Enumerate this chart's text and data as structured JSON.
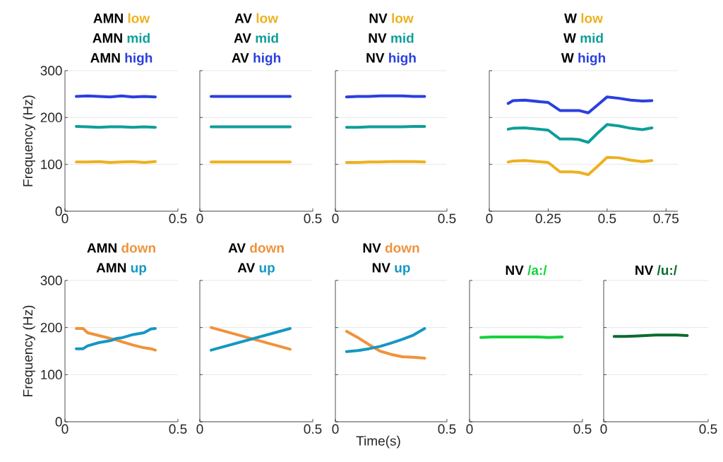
{
  "chart_data": [
    {
      "type": "line",
      "title": "AMN",
      "ylabel": "Frequency (Hz)",
      "xlim": [
        0,
        0.5
      ],
      "xticks": [
        0,
        0.5
      ],
      "ylim": [
        0,
        300
      ],
      "yticks": [
        0,
        100,
        200,
        300
      ],
      "grid": "y",
      "x": [
        0.05,
        0.1,
        0.15,
        0.2,
        0.25,
        0.3,
        0.35,
        0.4
      ],
      "series": [
        {
          "name": "low",
          "color": "#edb120",
          "values": [
            105,
            105,
            106,
            104,
            105,
            106,
            104,
            106
          ]
        },
        {
          "name": "mid",
          "color": "#0e9e9a",
          "values": [
            181,
            180,
            179,
            180,
            180,
            179,
            180,
            179
          ]
        },
        {
          "name": "high",
          "color": "#2a3fe0",
          "values": [
            245,
            246,
            245,
            244,
            246,
            244,
            245,
            244
          ]
        }
      ]
    },
    {
      "type": "line",
      "title": "AV",
      "xlim": [
        0,
        0.5
      ],
      "xticks": [
        0,
        0.5
      ],
      "ylim": [
        0,
        300
      ],
      "yticks": [
        0,
        100,
        200,
        300
      ],
      "grid": "y",
      "tick_labels": "x",
      "x": [
        0.05,
        0.4
      ],
      "series": [
        {
          "name": "low",
          "color": "#edb120",
          "values": [
            105,
            105
          ]
        },
        {
          "name": "mid",
          "color": "#0e9e9a",
          "values": [
            180,
            180
          ]
        },
        {
          "name": "high",
          "color": "#2a3fe0",
          "values": [
            245,
            245
          ]
        }
      ]
    },
    {
      "type": "line",
      "title": "NV",
      "xlim": [
        0,
        0.5
      ],
      "xticks": [
        0,
        0.5
      ],
      "ylim": [
        0,
        300
      ],
      "yticks": [
        0,
        100,
        200,
        300
      ],
      "grid": "y",
      "tick_labels": "x",
      "x": [
        0.05,
        0.1,
        0.15,
        0.2,
        0.25,
        0.3,
        0.35,
        0.4
      ],
      "series": [
        {
          "name": "low",
          "color": "#edb120",
          "values": [
            104,
            104,
            105,
            105,
            106,
            106,
            106,
            105
          ]
        },
        {
          "name": "mid",
          "color": "#0e9e9a",
          "values": [
            179,
            179,
            180,
            180,
            180,
            180,
            181,
            181
          ]
        },
        {
          "name": "high",
          "color": "#2a3fe0",
          "values": [
            244,
            245,
            245,
            246,
            246,
            246,
            245,
            245
          ]
        }
      ]
    },
    {
      "type": "line",
      "title": "W",
      "xlim": [
        0,
        0.8
      ],
      "xticks": [
        0,
        0.25,
        0.5,
        0.75
      ],
      "ylim": [
        0,
        300
      ],
      "yticks": [
        0,
        100,
        200,
        300
      ],
      "grid": "y",
      "tick_labels": "x",
      "x": [
        0.08,
        0.1,
        0.15,
        0.25,
        0.3,
        0.35,
        0.38,
        0.42,
        0.46,
        0.5,
        0.55,
        0.6,
        0.65,
        0.69
      ],
      "series": [
        {
          "name": "low",
          "color": "#edb120",
          "values": [
            105,
            107,
            108,
            104,
            84,
            84,
            83,
            78,
            96,
            115,
            114,
            109,
            106,
            108
          ]
        },
        {
          "name": "mid",
          "color": "#0e9e9a",
          "values": [
            175,
            177,
            178,
            173,
            154,
            154,
            153,
            147,
            167,
            185,
            182,
            177,
            174,
            178
          ]
        },
        {
          "name": "high",
          "color": "#2a3fe0",
          "values": [
            230,
            236,
            237,
            232,
            215,
            215,
            215,
            210,
            227,
            244,
            241,
            237,
            235,
            236
          ]
        }
      ]
    },
    {
      "type": "line",
      "title": "AMN",
      "ylabel": "Frequency (Hz)",
      "xlim": [
        0,
        0.5
      ],
      "xticks": [
        0,
        0.5
      ],
      "ylim": [
        0,
        300
      ],
      "yticks": [
        0,
        100,
        200,
        300
      ],
      "grid": "y",
      "x": [
        0.05,
        0.08,
        0.1,
        0.15,
        0.2,
        0.23,
        0.25,
        0.3,
        0.35,
        0.38,
        0.4
      ],
      "series": [
        {
          "name": "down",
          "color": "#f0923a",
          "values": [
            198,
            198,
            189,
            183,
            177,
            173,
            170,
            163,
            157,
            155,
            152
          ]
        },
        {
          "name": "up",
          "color": "#1597c4",
          "values": [
            155,
            155,
            161,
            168,
            172,
            177,
            178,
            185,
            189,
            197,
            198
          ]
        }
      ]
    },
    {
      "type": "line",
      "title": "AV",
      "xlim": [
        0,
        0.5
      ],
      "xticks": [
        0,
        0.5
      ],
      "ylim": [
        0,
        300
      ],
      "yticks": [
        0,
        100,
        200,
        300
      ],
      "grid": "y",
      "tick_labels": "x",
      "x": [
        0.05,
        0.4
      ],
      "series": [
        {
          "name": "down",
          "color": "#f0923a",
          "values": [
            200,
            154
          ]
        },
        {
          "name": "up",
          "color": "#1597c4",
          "values": [
            152,
            198
          ]
        }
      ]
    },
    {
      "type": "line",
      "title": "NV",
      "xlabel": "Time(s)",
      "xlim": [
        0,
        0.5
      ],
      "xticks": [
        0,
        0.5
      ],
      "ylim": [
        0,
        300
      ],
      "yticks": [
        0,
        100,
        200,
        300
      ],
      "grid": "y",
      "tick_labels": "x",
      "x": [
        0.05,
        0.1,
        0.15,
        0.2,
        0.25,
        0.3,
        0.35,
        0.4
      ],
      "series": [
        {
          "name": "down",
          "color": "#f0923a",
          "values": [
            192,
            179,
            164,
            150,
            143,
            138,
            137,
            135
          ]
        },
        {
          "name": "up",
          "color": "#1597c4",
          "values": [
            149,
            151,
            155,
            160,
            167,
            175,
            184,
            198
          ]
        }
      ]
    },
    {
      "type": "line",
      "title": "NV",
      "xlim": [
        0,
        0.5
      ],
      "xticks": [
        0,
        0.5
      ],
      "ylim": [
        0,
        300
      ],
      "yticks": [
        0,
        100,
        200,
        300
      ],
      "grid": "y",
      "tick_labels": "x",
      "x": [
        0.05,
        0.1,
        0.15,
        0.2,
        0.25,
        0.3,
        0.35,
        0.41
      ],
      "series": [
        {
          "name": "/a:/",
          "color": "#15d13a",
          "values": [
            179,
            180,
            180,
            180,
            180,
            180,
            179,
            180
          ]
        }
      ]
    },
    {
      "type": "line",
      "title": "NV",
      "xlim": [
        0,
        0.5
      ],
      "xticks": [
        0,
        0.5
      ],
      "ylim": [
        0,
        300
      ],
      "yticks": [
        0,
        100,
        200,
        300
      ],
      "grid": "y",
      "tick_labels": "x",
      "x": [
        0.05,
        0.1,
        0.15,
        0.2,
        0.25,
        0.3,
        0.35,
        0.4
      ],
      "series": [
        {
          "name": "/u:/",
          "color": "#0a6b30",
          "values": [
            181,
            181,
            182,
            183,
            184,
            184,
            184,
            183
          ]
        }
      ]
    }
  ]
}
